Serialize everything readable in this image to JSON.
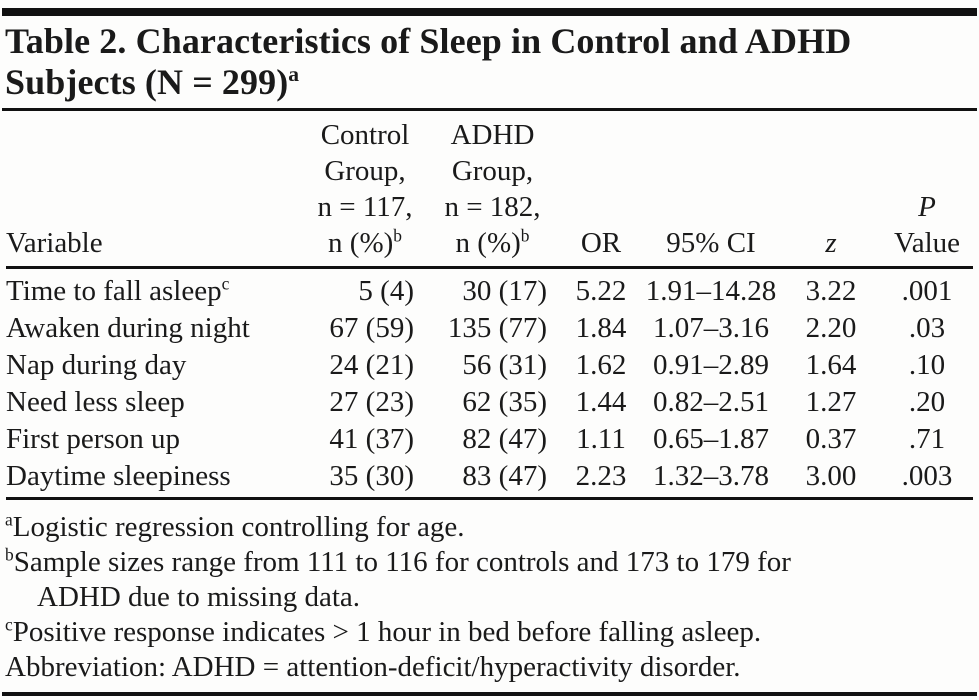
{
  "document": {
    "title": {
      "line1": "Table 2. Characteristics of Sleep in Control and ADHD",
      "line2": "Subjects (N = 299)",
      "title_sup": "a"
    }
  },
  "table": {
    "header": {
      "variable": "Variable",
      "control": {
        "lines": [
          "Control",
          "Group,",
          "n = 117,",
          "n (%)"
        ],
        "sup": "b"
      },
      "adhd": {
        "lines": [
          "ADHD",
          "Group,",
          "n = 182,",
          "n (%)"
        ],
        "sup": "b"
      },
      "or": "OR",
      "ci": "95% CI",
      "z": "z",
      "p": {
        "line1": "P",
        "line2": "Value"
      }
    },
    "rows": [
      {
        "variable": "Time to fall asleep",
        "variable_sup": "c",
        "control": "5 (4)",
        "adhd": "30 (17)",
        "or": "5.22",
        "ci": "1.91–14.28",
        "z": "3.22",
        "p": ".001"
      },
      {
        "variable": "Awaken during night",
        "control": "67 (59)",
        "adhd": "135 (77)",
        "or": "1.84",
        "ci": "1.07–3.16",
        "z": "2.20",
        "p": ".03"
      },
      {
        "variable": "Nap during day",
        "control": "24 (21)",
        "adhd": "56 (31)",
        "or": "1.62",
        "ci": "0.91–2.89",
        "z": "1.64",
        "p": ".10"
      },
      {
        "variable": "Need less sleep",
        "control": "27 (23)",
        "adhd": "62 (35)",
        "or": "1.44",
        "ci": "0.82–2.51",
        "z": "1.27",
        "p": ".20"
      },
      {
        "variable": "First person up",
        "control": "41 (37)",
        "adhd": "82 (47)",
        "or": "1.11",
        "ci": "0.65–1.87",
        "z": "0.37",
        "p": ".71"
      },
      {
        "variable": "Daytime sleepiness",
        "control": "35 (30)",
        "adhd": "83 (47)",
        "or": "2.23",
        "ci": "1.32–3.78",
        "z": "3.00",
        "p": ".003"
      }
    ]
  },
  "footnotes": {
    "a": {
      "marker": "a",
      "text": "Logistic regression controlling for age."
    },
    "b": {
      "marker": "b",
      "text_line1": "Sample sizes range from 111 to 116 for controls and 173 to 179 for",
      "text_line2": "ADHD due to missing data."
    },
    "c": {
      "marker": "c",
      "text": "Positive response indicates > 1 hour in bed before falling asleep."
    },
    "abbreviation": {
      "text": "Abbreviation: ADHD = attention-deficit/hyperactivity disorder."
    }
  }
}
